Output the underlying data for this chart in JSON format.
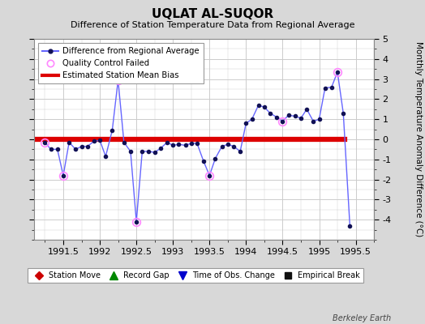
{
  "title": "UQLAT AL-SUQOR",
  "subtitle": "Difference of Station Temperature Data from Regional Average",
  "ylabel": "Monthly Temperature Anomaly Difference (°C)",
  "xlabel_ticks": [
    1991.5,
    1992,
    1992.5,
    1993,
    1993.5,
    1994,
    1994.5,
    1995,
    1995.5
  ],
  "xlim": [
    1991.1,
    1995.75
  ],
  "ylim": [
    -5,
    5
  ],
  "yticks": [
    -4,
    -3,
    -2,
    -1,
    0,
    1,
    2,
    3,
    4,
    5
  ],
  "ytick_labels": [
    "-4",
    "-3",
    "-2",
    "-1",
    "0",
    "1",
    "2",
    "3",
    "4",
    "5"
  ],
  "bias_line_y": 0.0,
  "bias_line_color": "#dd0000",
  "bias_line_xstart": 1991.1,
  "bias_line_xend": 1995.35,
  "background_color": "#d8d8d8",
  "plot_bg_color": "#ffffff",
  "line_color": "#6666ff",
  "line_width": 1.0,
  "marker_color": "#111155",
  "marker_size": 3,
  "qc_marker_color": "#ff88ff",
  "qc_marker_size": 7,
  "grid_color": "#cccccc",
  "watermark": "Berkeley Earth",
  "series_x": [
    1991.25,
    1991.33,
    1991.42,
    1991.5,
    1991.58,
    1991.67,
    1991.75,
    1991.83,
    1991.92,
    1992.0,
    1992.08,
    1992.17,
    1992.25,
    1992.33,
    1992.42,
    1992.5,
    1992.58,
    1992.67,
    1992.75,
    1992.83,
    1992.92,
    1993.0,
    1993.08,
    1993.17,
    1993.25,
    1993.33,
    1993.42,
    1993.5,
    1993.58,
    1993.67,
    1993.75,
    1993.83,
    1993.92,
    1994.0,
    1994.08,
    1994.17,
    1994.25,
    1994.33,
    1994.42,
    1994.5,
    1994.58,
    1994.67,
    1994.75,
    1994.83,
    1994.92,
    1995.0,
    1995.08,
    1995.17,
    1995.25,
    1995.33,
    1995.42
  ],
  "series_y": [
    -0.15,
    -0.5,
    -0.5,
    -1.8,
    -0.15,
    -0.5,
    -0.35,
    -0.35,
    -0.1,
    -0.05,
    -0.85,
    0.45,
    2.95,
    -0.15,
    -0.6,
    -4.1,
    -0.6,
    -0.6,
    -0.65,
    -0.45,
    -0.15,
    -0.3,
    -0.25,
    -0.3,
    -0.2,
    -0.2,
    -1.1,
    -1.8,
    -0.95,
    -0.35,
    -0.25,
    -0.35,
    -0.6,
    0.8,
    1.0,
    1.7,
    1.6,
    1.3,
    1.1,
    0.9,
    1.2,
    1.15,
    1.05,
    1.5,
    0.9,
    1.0,
    2.55,
    2.6,
    3.35,
    1.3,
    -4.3
  ],
  "qc_failed_x": [
    1991.25,
    1991.5,
    1992.25,
    1992.5,
    1993.5,
    1994.5,
    1995.25
  ],
  "qc_failed_y": [
    -0.15,
    -1.8,
    2.95,
    -4.1,
    -1.8,
    0.9,
    3.35
  ],
  "legend1_items": [
    {
      "label": "Difference from Regional Average",
      "type": "line"
    },
    {
      "label": "Quality Control Failed",
      "type": "qc"
    },
    {
      "label": "Estimated Station Mean Bias",
      "type": "bias"
    }
  ],
  "legend2_items": [
    {
      "label": "Station Move",
      "marker": "D",
      "color": "#cc0000"
    },
    {
      "label": "Record Gap",
      "marker": "^",
      "color": "#008800"
    },
    {
      "label": "Time of Obs. Change",
      "marker": "v",
      "color": "#0000cc"
    },
    {
      "label": "Empirical Break",
      "marker": "s",
      "color": "#111111"
    }
  ]
}
